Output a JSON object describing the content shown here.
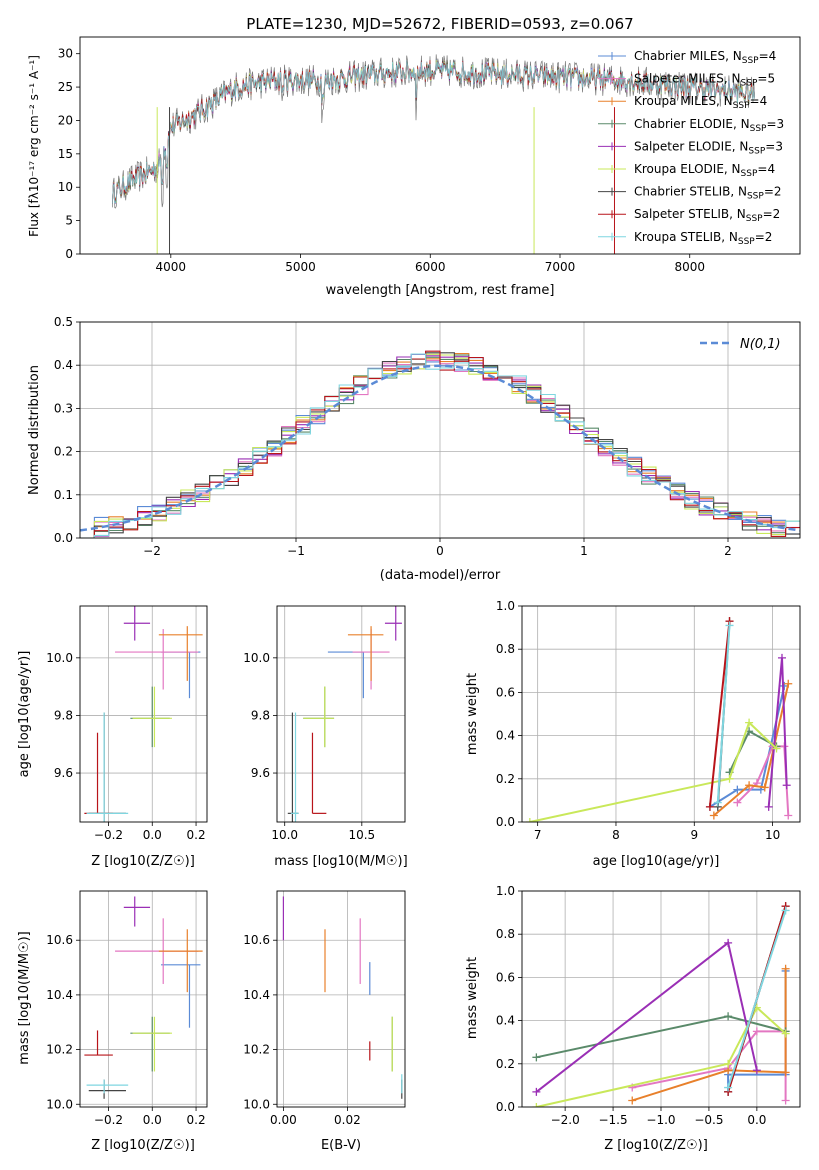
{
  "colors": {
    "chabrier_miles": "#5b8bd6",
    "salpeter_miles": "#e377c2",
    "kroupa_miles": "#e8802b",
    "chabrier_elodie": "#5a8a6a",
    "salpeter_elodie": "#9a2fb5",
    "kroupa_elodie": "#c9e85a",
    "chabrier_stelib": "#444444",
    "salpeter_stelib": "#b8141a",
    "kroupa_stelib": "#7fd6e0",
    "gaussian": "#5b8bd6"
  },
  "chart_data": [
    {
      "id": "spectrum",
      "type": "line",
      "title": "PLATE=1230, MJD=52672, FIBERID=0593, z=0.067",
      "xlabel": "wavelength [Angstrom, rest frame]",
      "ylabel": "Flux [fλ10⁻¹⁷ erg cm⁻² s⁻¹ A⁻¹]",
      "xlim": [
        3300,
        8850
      ],
      "ylim": [
        0,
        32.5
      ],
      "xticks": [
        "4000",
        "5000",
        "6000",
        "7000",
        "8000"
      ],
      "yticks": [
        "0",
        "5",
        "10",
        "15",
        "20",
        "25",
        "30"
      ],
      "grid": false,
      "legend_position": "upper-right",
      "continuum": {
        "x": [
          3550,
          3700,
          3900,
          4000,
          4200,
          4500,
          4800,
          5200,
          5600,
          6000,
          6500,
          7000,
          7500,
          8000,
          8500
        ],
        "y": [
          9,
          11,
          13,
          19,
          21,
          25,
          26,
          26,
          27,
          27.5,
          27,
          26.5,
          26,
          25,
          24
        ]
      },
      "series": [
        {
          "name": "Chabrier MILES, N_SSP=4",
          "color_key": "chabrier_miles"
        },
        {
          "name": "Salpeter MILES, N_SSP=5",
          "color_key": "salpeter_miles"
        },
        {
          "name": "Kroupa MILES, N_SSP=4",
          "color_key": "kroupa_miles"
        },
        {
          "name": "Chabrier ELODIE, N_SSP=3",
          "color_key": "chabrier_elodie"
        },
        {
          "name": "Salpeter ELODIE, N_SSP=3",
          "color_key": "salpeter_elodie"
        },
        {
          "name": "Kroupa ELODIE, N_SSP=4",
          "color_key": "kroupa_elodie"
        },
        {
          "name": "Chabrier STELIB, N_SSP=2",
          "color_key": "chabrier_stelib"
        },
        {
          "name": "Salpeter STELIB, N_SSP=2",
          "color_key": "salpeter_stelib"
        },
        {
          "name": "Kroupa STELIB, N_SSP=2",
          "color_key": "kroupa_stelib"
        }
      ]
    },
    {
      "id": "residuals",
      "type": "line",
      "xlabel": "(data-model)/error",
      "ylabel": "Normed distribution",
      "xlim": [
        -2.5,
        2.5
      ],
      "ylim": [
        0,
        0.5
      ],
      "xticks": [
        "−2",
        "−1",
        "0",
        "1",
        "2"
      ],
      "yticks": [
        "0.0",
        "0.1",
        "0.2",
        "0.3",
        "0.4",
        "0.5"
      ],
      "grid": true,
      "legend_position": "upper-right",
      "legend": "N(0,1)",
      "bin_width": 0.1,
      "curve": "gaussian N(0,1), dashed"
    },
    {
      "id": "age_vs_Z",
      "type": "scatter",
      "xlabel": "Z [log10(Z/Z☉)]",
      "ylabel": "age  [log10(age/yr)]",
      "xlim": [
        -0.33,
        0.25
      ],
      "ylim": [
        9.43,
        10.18
      ],
      "xticks": [
        "−0.2",
        "0.0",
        "0.2"
      ],
      "yticks": [
        "9.6",
        "9.8",
        "10.0"
      ],
      "grid": true
    },
    {
      "id": "age_vs_mass",
      "type": "scatter",
      "xlabel": "mass [log10(M/M☉)]",
      "xlim": [
        9.95,
        10.78
      ],
      "ylim": [
        9.43,
        10.18
      ],
      "xticks": [
        "10.0",
        "10.5"
      ],
      "yticks": [
        "9.6",
        "9.8",
        "10.0"
      ],
      "grid": true
    },
    {
      "id": "weight_vs_age",
      "type": "line",
      "xlabel": "age  [log10(age/yr)]",
      "ylabel": "mass weight",
      "xlim": [
        6.8,
        10.35
      ],
      "ylim": [
        0,
        1
      ],
      "xticks": [
        "7",
        "8",
        "9",
        "10"
      ],
      "yticks": [
        "0.0",
        "0.2",
        "0.4",
        "0.6",
        "0.8",
        "1.0"
      ],
      "grid": true
    },
    {
      "id": "mass_vs_Z",
      "type": "scatter",
      "xlabel": "Z [log10(Z/Z☉)]",
      "ylabel": "mass [log10(M/M☉)]",
      "xlim": [
        -0.33,
        0.25
      ],
      "ylim": [
        9.99,
        10.78
      ],
      "xticks": [
        "−0.2",
        "0.0",
        "0.2"
      ],
      "yticks": [
        "10.0",
        "10.2",
        "10.4",
        "10.6"
      ],
      "grid": true
    },
    {
      "id": "mass_vs_ebv",
      "type": "scatter",
      "xlabel": "E(B-V)",
      "xlim": [
        -0.002,
        0.038
      ],
      "ylim": [
        9.99,
        10.78
      ],
      "xticks": [
        "0.00",
        "0.02"
      ],
      "yticks": [
        "10.0",
        "10.2",
        "10.4",
        "10.6"
      ],
      "grid": true
    },
    {
      "id": "weight_vs_Z",
      "type": "line",
      "xlabel": "Z [log10(Z/Z☉)]",
      "ylabel": "mass weight",
      "xlim": [
        -2.45,
        0.45
      ],
      "ylim": [
        0,
        1
      ],
      "xticks": [
        "−2.0",
        "−1.5",
        "−1.0",
        "−0.5",
        "0.0"
      ],
      "yticks": [
        "0.0",
        "0.2",
        "0.4",
        "0.6",
        "0.8",
        "1.0"
      ],
      "grid": true
    }
  ],
  "fits": [
    {
      "key": "chabrier_miles",
      "Z": 0.17,
      "dZ": [
        0.13,
        0.05
      ],
      "age": 10.02,
      "dage": [
        0.16,
        0.0
      ],
      "mass": 10.51,
      "dmass": [
        0.23,
        0.0
      ],
      "ebv": 0.027,
      "debv": [
        0.11,
        0.01
      ]
    },
    {
      "key": "salpeter_miles",
      "Z": 0.05,
      "dZ": [
        0.22,
        0.16
      ],
      "age": 10.02,
      "dage": [
        0.13,
        0.08
      ],
      "mass": 10.56,
      "dmass": [
        0.12,
        0.12
      ],
      "ebv": 0.024,
      "debv": [
        0.12,
        0.12
      ]
    },
    {
      "key": "kroupa_miles",
      "Z": 0.16,
      "dZ": [
        0.13,
        0.07
      ],
      "age": 10.08,
      "dage": [
        0.16,
        0.03
      ],
      "mass": 10.56,
      "dmass": [
        0.15,
        0.08
      ],
      "ebv": 0.013,
      "debv": [
        0.15,
        0.08
      ]
    },
    {
      "key": "chabrier_elodie",
      "Z": 0.0,
      "dZ": [
        0.1,
        0.08
      ],
      "age": 9.79,
      "dage": [
        0.1,
        0.11
      ],
      "mass": 10.26,
      "dmass": [
        0.14,
        0.06
      ],
      "ebv": 0.034,
      "debv": [
        0.14,
        0.06
      ]
    },
    {
      "key": "salpeter_elodie",
      "Z": -0.08,
      "dZ": [
        0.05,
        0.07
      ],
      "age": 10.12,
      "dage": [
        0.06,
        0.06
      ],
      "mass": 10.72,
      "dmass": [
        0.07,
        0.04
      ],
      "ebv": 0.0,
      "debv": [
        0.12,
        0.04
      ]
    },
    {
      "key": "kroupa_elodie",
      "Z": 0.01,
      "dZ": [
        0.1,
        0.08
      ],
      "age": 9.79,
      "dage": [
        0.1,
        0.11
      ],
      "mass": 10.26,
      "dmass": [
        0.14,
        0.06
      ],
      "ebv": 0.034,
      "debv": [
        0.14,
        0.06
      ]
    },
    {
      "key": "chabrier_stelib",
      "Z": -0.22,
      "dZ": [
        0.07,
        0.1
      ],
      "age": 9.46,
      "dage": [
        0.06,
        0.35
      ],
      "mass": 10.05,
      "dmass": [
        0.03,
        0.04
      ],
      "ebv": 0.037,
      "debv": [
        0.03,
        0.04
      ]
    },
    {
      "key": "salpeter_stelib",
      "Z": -0.25,
      "dZ": [
        0.06,
        0.07
      ],
      "age": 9.46,
      "dage": [
        0.0,
        0.28
      ],
      "mass": 10.18,
      "dmass": [
        0.0,
        0.09
      ],
      "ebv": 0.027,
      "debv": [
        0.02,
        0.05
      ]
    },
    {
      "key": "kroupa_stelib",
      "Z": -0.22,
      "dZ": [
        0.08,
        0.11
      ],
      "age": 9.46,
      "dage": [
        0.04,
        0.35
      ],
      "mass": 10.07,
      "dmass": [
        0.03,
        0.02
      ],
      "ebv": 0.037,
      "debv": [
        0.03,
        0.04
      ]
    }
  ],
  "ssp_weights": [
    {
      "key": "chabrier_miles",
      "ages": [
        9.2,
        9.55,
        9.85,
        10.15
      ],
      "Zs": [
        -0.3,
        -0.3,
        0.3,
        0.3
      ],
      "w": [
        0.07,
        0.15,
        0.15,
        0.63
      ]
    },
    {
      "key": "salpeter_miles",
      "ages": [
        9.55,
        9.8,
        10.0,
        10.15,
        10.2
      ],
      "Zs": [
        -1.3,
        -0.3,
        0.0,
        0.3,
        0.3
      ],
      "w": [
        0.09,
        0.18,
        0.35,
        0.35,
        0.03
      ]
    },
    {
      "key": "kroupa_miles",
      "ages": [
        9.25,
        9.7,
        9.9,
        10.2
      ],
      "Zs": [
        -1.3,
        -0.3,
        0.3,
        0.3
      ],
      "w": [
        0.03,
        0.17,
        0.16,
        0.64
      ]
    },
    {
      "key": "chabrier_elodie",
      "ages": [
        9.45,
        9.7,
        10.05
      ],
      "Zs": [
        -2.3,
        -0.3,
        0.3
      ],
      "w": [
        0.23,
        0.42,
        0.35
      ]
    },
    {
      "key": "salpeter_elodie",
      "ages": [
        9.95,
        10.12,
        10.18
      ],
      "Zs": [
        -2.3,
        -0.3,
        0.0
      ],
      "w": [
        0.07,
        0.76,
        0.17
      ]
    },
    {
      "key": "kroupa_elodie",
      "ages": [
        6.9,
        9.45,
        9.7,
        10.05
      ],
      "Zs": [
        -2.3,
        -0.3,
        0.0,
        0.3
      ],
      "w": [
        0.0,
        0.2,
        0.46,
        0.34
      ]
    },
    {
      "key": "chabrier_stelib",
      "ages": [
        9.3,
        9.45
      ],
      "Zs": [
        -0.3,
        0.3
      ],
      "w": [
        0.07,
        0.93
      ]
    },
    {
      "key": "salpeter_stelib",
      "ages": [
        9.2,
        9.45
      ],
      "Zs": [
        -0.3,
        0.3
      ],
      "w": [
        0.07,
        0.93
      ]
    },
    {
      "key": "kroupa_stelib",
      "ages": [
        9.3,
        9.45
      ],
      "Zs": [
        -0.3,
        0.3
      ],
      "w": [
        0.09,
        0.91
      ]
    }
  ]
}
